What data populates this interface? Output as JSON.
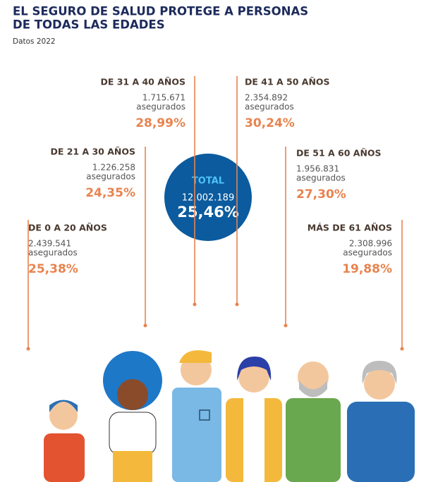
{
  "header": {
    "title_lines": [
      "EL SEGURO DE SALUD PROTEGE A PERSONAS",
      "DE TODAS LAS EDADES"
    ],
    "subtitle": "Datos 2022"
  },
  "total": {
    "label": "TOTAL",
    "count": "12.002.189",
    "percent": "25,46%"
  },
  "groups": [
    {
      "label": "DE 0 A 20 AÑOS",
      "count": "2.439.541",
      "unit": "asegurados",
      "percent": "25,38%"
    },
    {
      "label": "DE 21 A 30 AÑOS",
      "count": "1.226.258",
      "unit": "asegurados",
      "percent": "24,35%"
    },
    {
      "label": "DE 31 A 40 AÑOS",
      "count": "1.715.671",
      "unit": "asegurados",
      "percent": "28,99%"
    },
    {
      "label": "DE 41 A 50 AÑOS",
      "count": "2.354.892",
      "unit": "asegurados",
      "percent": "30,24%"
    },
    {
      "label": "DE 51 A 60 AÑOS",
      "count": "1.956.831",
      "unit": "asegurados",
      "percent": "27,30%"
    },
    {
      "label": "MÁS DE 61 AÑOS",
      "count": "2.308.996",
      "unit": "asegurados",
      "percent": "19,88%"
    }
  ]
}
